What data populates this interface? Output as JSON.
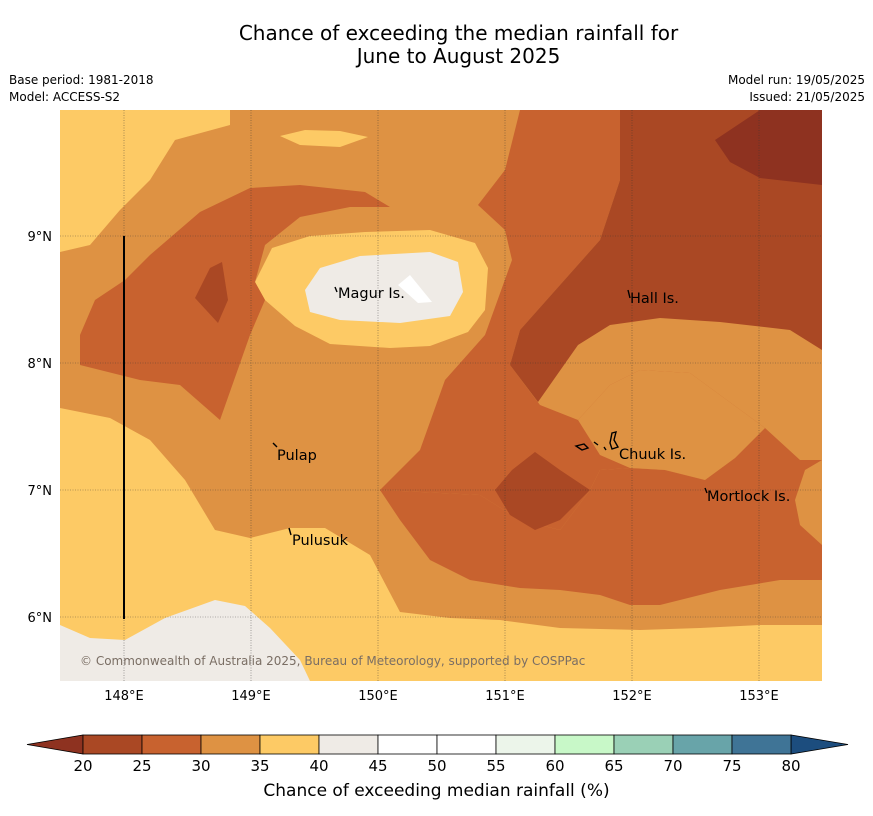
{
  "title_line1": "Chance of exceeding the median rainfall for",
  "title_line2": "June to August 2025",
  "base_period": "Base period: 1981-2018",
  "model": "Model: ACCESS-S2",
  "model_run": "Model run: 19/05/2025",
  "issued": "Issued: 21/05/2025",
  "copyright": "© Commonwealth of Australia 2025, Bureau of Meteorology, supported by COSPPac",
  "lat_ticks": [
    "9°N",
    "8°N",
    "7°N",
    "6°N"
  ],
  "lon_ticks": [
    "148°E",
    "149°E",
    "150°E",
    "151°E",
    "152°E",
    "153°E"
  ],
  "places": [
    "Magur Is.",
    "Hall Is.",
    "Pulap",
    "Chuuk Is.",
    "Mortlock Is.",
    "Pulusuk"
  ],
  "colorbar": {
    "ticks": [
      "20",
      "25",
      "30",
      "35",
      "40",
      "45",
      "50",
      "55",
      "60",
      "65",
      "70",
      "75",
      "80"
    ],
    "colors": [
      "#aa4824",
      "#c8622f",
      "#de9243",
      "#fdca65",
      "#efebe6",
      "#ffffff",
      "#ffffff",
      "#ecf5ea",
      "#c8f8c8",
      "#9ad0b6",
      "#68a4a9",
      "#3f7496"
    ],
    "under_color": "#8e3220",
    "over_color": "#1c4d7e",
    "label": "Chance of exceeding median rainfall (%)"
  },
  "map_colors": {
    "c20": "#8e3220",
    "c25": "#aa4824",
    "c30": "#c8622f",
    "c35": "#de9243",
    "c40": "#fdca65",
    "c45": "#efebe6",
    "c50": "#ffffff"
  }
}
